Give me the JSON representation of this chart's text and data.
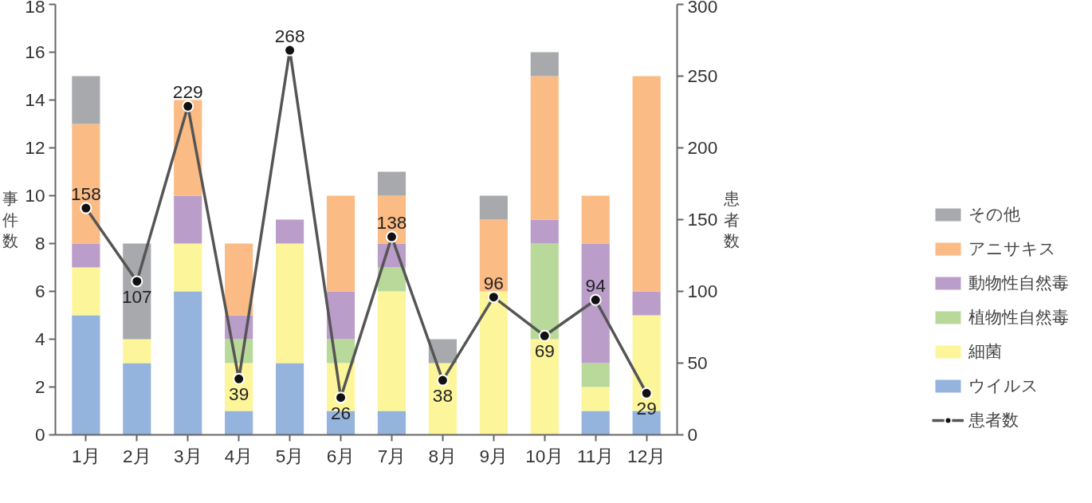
{
  "chart_data": {
    "type": "bar",
    "stacked": true,
    "ylabel": "事件数",
    "y2label": "患者数",
    "categories": [
      "1月",
      "2月",
      "3月",
      "4月",
      "5月",
      "6月",
      "7月",
      "8月",
      "9月",
      "10月",
      "11月",
      "12月"
    ],
    "ylim": [
      0,
      18
    ],
    "yticks": [
      0,
      2,
      4,
      6,
      8,
      10,
      12,
      14,
      16,
      18
    ],
    "y2lim": [
      0,
      300
    ],
    "y2ticks": [
      0,
      50,
      100,
      150,
      200,
      250,
      300
    ],
    "grid": false,
    "legend": "right",
    "series": [
      {
        "name": "ウイルス",
        "color": "#94b3dd",
        "values": [
          5,
          3,
          6,
          1,
          3,
          1,
          1,
          0,
          0,
          0,
          1,
          1
        ]
      },
      {
        "name": "細菌",
        "color": "#fdf59a",
        "values": [
          2,
          1,
          2,
          2,
          5,
          2,
          5,
          3,
          6,
          4,
          1,
          4
        ]
      },
      {
        "name": "植物性自然毒",
        "color": "#b9d99b",
        "values": [
          0,
          0,
          0,
          1,
          0,
          1,
          1,
          0,
          0,
          4,
          1,
          0
        ]
      },
      {
        "name": "動物性自然毒",
        "color": "#bb9dca",
        "values": [
          1,
          0,
          2,
          1,
          1,
          2,
          1,
          0,
          0,
          1,
          5,
          1
        ]
      },
      {
        "name": "アニサキス",
        "color": "#fbbb85",
        "values": [
          5,
          0,
          4,
          3,
          0,
          4,
          2,
          0,
          3,
          6,
          2,
          9
        ]
      },
      {
        "name": "その他",
        "color": "#a7a9ac",
        "values": [
          2,
          4,
          0,
          0,
          0,
          0,
          1,
          1,
          1,
          1,
          0,
          0
        ]
      },
      {
        "name": "患者数",
        "type": "line",
        "axis": "y2",
        "color": "#555555",
        "marker": "circle",
        "data_labels": true,
        "values": [
          158,
          107,
          229,
          39,
          268,
          26,
          138,
          38,
          96,
          69,
          94,
          29
        ]
      }
    ]
  }
}
